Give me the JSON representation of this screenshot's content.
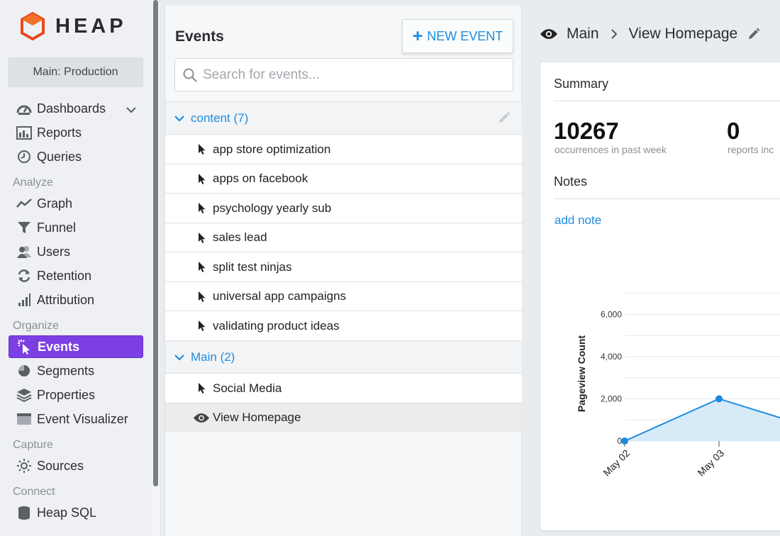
{
  "brand": {
    "name": "HEAP",
    "color": "#e8491d"
  },
  "environment": "Main: Production",
  "colors": {
    "accent": "#1d8ce0",
    "active_nav": "#7b3fe4"
  },
  "sidebar": {
    "top_items": [
      {
        "label": "Dashboards",
        "icon": "speedometer-icon",
        "has_chevron": true
      },
      {
        "label": "Reports",
        "icon": "report-icon"
      },
      {
        "label": "Queries",
        "icon": "clock-icon"
      }
    ],
    "sections": [
      {
        "title": "Analyze",
        "items": [
          {
            "label": "Graph",
            "icon": "line-graph-icon"
          },
          {
            "label": "Funnel",
            "icon": "funnel-icon"
          },
          {
            "label": "Users",
            "icon": "users-icon"
          },
          {
            "label": "Retention",
            "icon": "refresh-icon"
          },
          {
            "label": "Attribution",
            "icon": "bars-icon"
          }
        ]
      },
      {
        "title": "Organize",
        "items": [
          {
            "label": "Events",
            "icon": "cursor-click-icon",
            "active": true
          },
          {
            "label": "Segments",
            "icon": "pie-icon"
          },
          {
            "label": "Properties",
            "icon": "layers-icon"
          },
          {
            "label": "Event Visualizer",
            "icon": "window-icon"
          }
        ]
      },
      {
        "title": "Capture",
        "items": [
          {
            "label": "Sources",
            "icon": "sun-icon"
          }
        ]
      },
      {
        "title": "Connect",
        "items": [
          {
            "label": "Heap SQL",
            "icon": "database-icon"
          }
        ]
      }
    ]
  },
  "events_panel": {
    "title": "Events",
    "new_event_label": "NEW EVENT",
    "search_placeholder": "Search for events...",
    "groups": [
      {
        "label": "content (7)",
        "items": [
          "app store optimization",
          "apps on facebook",
          "psychology yearly sub",
          "sales lead",
          "split test ninjas",
          "universal app campaigns",
          "validating product ideas"
        ]
      },
      {
        "label": "Main (2)",
        "items": [
          "Social Media",
          "View Homepage"
        ]
      }
    ]
  },
  "detail": {
    "breadcrumb_parent": "Main",
    "breadcrumb_current": "View Homepage",
    "summary_title": "Summary",
    "stats": [
      {
        "value": "10267",
        "label": "occurrences in past week"
      },
      {
        "value": "0",
        "label": "reports inc"
      }
    ],
    "notes_title": "Notes",
    "add_note_label": "add note"
  },
  "chart_data": {
    "type": "area",
    "ylabel": "Pageview Count",
    "yticks": [
      0,
      2000,
      4000,
      6000
    ],
    "ytick_labels": [
      "0",
      "2,000",
      "4,000",
      "6,000"
    ],
    "ylim": [
      0,
      7000
    ],
    "categories": [
      "May 02",
      "May 03"
    ],
    "values": [
      0,
      2000
    ],
    "series_color": "#1d8ce0"
  }
}
